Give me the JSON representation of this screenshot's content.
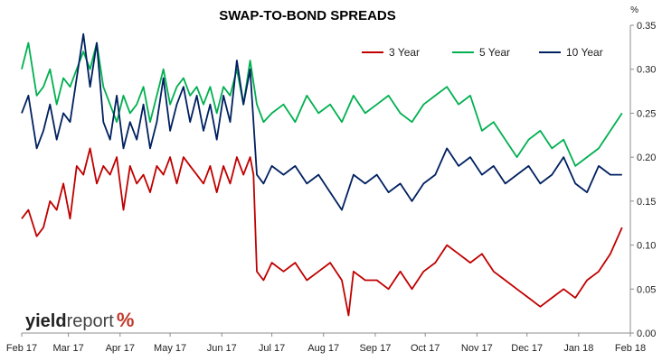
{
  "chart_data": {
    "type": "line",
    "title": "SWAP-TO-BOND SPREADS",
    "ylabel": "%",
    "ylim": [
      0,
      0.35
    ],
    "yticks": [
      "0.00",
      "0.05",
      "0.10",
      "0.15",
      "0.20",
      "0.25",
      "0.30",
      "0.35"
    ],
    "x_range": [
      "2017-02-01",
      "2018-02-01"
    ],
    "x_tick_labels": [
      "Feb 17",
      "Mar 17",
      "Apr 17",
      "May 17",
      "Jun 17",
      "Jul 17",
      "Aug 17",
      "Sep 17",
      "Oct 17",
      "Nov 17",
      "Dec 17",
      "Jan 18",
      "Feb 18"
    ],
    "x_tick_dates": [
      "2017-02-01",
      "2017-03-01",
      "2017-04-01",
      "2017-05-01",
      "2017-06-01",
      "2017-07-01",
      "2017-08-01",
      "2017-09-01",
      "2017-10-01",
      "2017-11-01",
      "2017-12-01",
      "2018-01-01",
      "2018-02-01"
    ],
    "grid": false,
    "legend_position": "top-right",
    "series": [
      {
        "name": "3 Year",
        "color": "#c00000",
        "dates": [
          "2017-02-01",
          "2017-02-05",
          "2017-02-10",
          "2017-02-14",
          "2017-02-18",
          "2017-02-22",
          "2017-02-26",
          "2017-03-02",
          "2017-03-06",
          "2017-03-10",
          "2017-03-14",
          "2017-03-18",
          "2017-03-22",
          "2017-03-26",
          "2017-03-30",
          "2017-04-03",
          "2017-04-07",
          "2017-04-11",
          "2017-04-15",
          "2017-04-19",
          "2017-04-23",
          "2017-04-27",
          "2017-05-01",
          "2017-05-05",
          "2017-05-09",
          "2017-05-13",
          "2017-05-17",
          "2017-05-21",
          "2017-05-25",
          "2017-05-29",
          "2017-06-02",
          "2017-06-06",
          "2017-06-10",
          "2017-06-14",
          "2017-06-18",
          "2017-06-20",
          "2017-06-22",
          "2017-06-26",
          "2017-07-01",
          "2017-07-08",
          "2017-07-15",
          "2017-07-22",
          "2017-07-29",
          "2017-08-05",
          "2017-08-12",
          "2017-08-16",
          "2017-08-19",
          "2017-08-26",
          "2017-09-02",
          "2017-09-09",
          "2017-09-16",
          "2017-09-23",
          "2017-09-30",
          "2017-10-07",
          "2017-10-14",
          "2017-10-21",
          "2017-10-28",
          "2017-11-04",
          "2017-11-11",
          "2017-11-18",
          "2017-11-25",
          "2017-12-02",
          "2017-12-09",
          "2017-12-16",
          "2017-12-23",
          "2017-12-30",
          "2018-01-06",
          "2018-01-13",
          "2018-01-20",
          "2018-01-27"
        ],
        "values": [
          0.13,
          0.14,
          0.11,
          0.12,
          0.15,
          0.14,
          0.17,
          0.13,
          0.19,
          0.18,
          0.21,
          0.17,
          0.19,
          0.18,
          0.2,
          0.14,
          0.19,
          0.17,
          0.18,
          0.16,
          0.19,
          0.18,
          0.2,
          0.17,
          0.2,
          0.19,
          0.18,
          0.17,
          0.19,
          0.16,
          0.19,
          0.17,
          0.2,
          0.18,
          0.2,
          0.18,
          0.07,
          0.06,
          0.08,
          0.07,
          0.08,
          0.06,
          0.07,
          0.08,
          0.06,
          0.02,
          0.07,
          0.06,
          0.06,
          0.05,
          0.07,
          0.05,
          0.07,
          0.08,
          0.1,
          0.09,
          0.08,
          0.09,
          0.07,
          0.06,
          0.05,
          0.04,
          0.03,
          0.04,
          0.05,
          0.04,
          0.06,
          0.07,
          0.09,
          0.12
        ]
      },
      {
        "name": "5 Year",
        "color": "#00b050",
        "dates": [
          "2017-02-01",
          "2017-02-05",
          "2017-02-10",
          "2017-02-14",
          "2017-02-18",
          "2017-02-22",
          "2017-02-26",
          "2017-03-02",
          "2017-03-06",
          "2017-03-10",
          "2017-03-14",
          "2017-03-18",
          "2017-03-22",
          "2017-03-26",
          "2017-03-30",
          "2017-04-03",
          "2017-04-07",
          "2017-04-11",
          "2017-04-15",
          "2017-04-19",
          "2017-04-23",
          "2017-04-27",
          "2017-05-01",
          "2017-05-05",
          "2017-05-09",
          "2017-05-13",
          "2017-05-17",
          "2017-05-21",
          "2017-05-25",
          "2017-05-29",
          "2017-06-02",
          "2017-06-06",
          "2017-06-10",
          "2017-06-14",
          "2017-06-18",
          "2017-06-22",
          "2017-06-26",
          "2017-07-01",
          "2017-07-08",
          "2017-07-15",
          "2017-07-22",
          "2017-07-29",
          "2017-08-05",
          "2017-08-12",
          "2017-08-19",
          "2017-08-26",
          "2017-09-02",
          "2017-09-09",
          "2017-09-16",
          "2017-09-23",
          "2017-09-30",
          "2017-10-07",
          "2017-10-14",
          "2017-10-21",
          "2017-10-28",
          "2017-11-04",
          "2017-11-11",
          "2017-11-18",
          "2017-11-25",
          "2017-12-02",
          "2017-12-09",
          "2017-12-16",
          "2017-12-23",
          "2017-12-30",
          "2018-01-06",
          "2018-01-13",
          "2018-01-20",
          "2018-01-27"
        ],
        "values": [
          0.3,
          0.33,
          0.27,
          0.28,
          0.3,
          0.26,
          0.29,
          0.28,
          0.3,
          0.32,
          0.3,
          0.33,
          0.28,
          0.26,
          0.24,
          0.27,
          0.25,
          0.26,
          0.28,
          0.24,
          0.27,
          0.3,
          0.26,
          0.28,
          0.29,
          0.27,
          0.28,
          0.26,
          0.28,
          0.25,
          0.28,
          0.27,
          0.3,
          0.26,
          0.31,
          0.26,
          0.24,
          0.25,
          0.26,
          0.24,
          0.27,
          0.25,
          0.26,
          0.24,
          0.27,
          0.25,
          0.26,
          0.27,
          0.25,
          0.24,
          0.26,
          0.27,
          0.28,
          0.26,
          0.27,
          0.23,
          0.24,
          0.22,
          0.2,
          0.22,
          0.23,
          0.21,
          0.22,
          0.19,
          0.2,
          0.21,
          0.23,
          0.25
        ]
      },
      {
        "name": "10 Year",
        "color": "#002060",
        "dates": [
          "2017-02-01",
          "2017-02-05",
          "2017-02-10",
          "2017-02-14",
          "2017-02-18",
          "2017-02-22",
          "2017-02-26",
          "2017-03-02",
          "2017-03-06",
          "2017-03-10",
          "2017-03-14",
          "2017-03-18",
          "2017-03-22",
          "2017-03-26",
          "2017-03-30",
          "2017-04-03",
          "2017-04-07",
          "2017-04-11",
          "2017-04-15",
          "2017-04-19",
          "2017-04-23",
          "2017-04-27",
          "2017-05-01",
          "2017-05-05",
          "2017-05-09",
          "2017-05-13",
          "2017-05-17",
          "2017-05-21",
          "2017-05-25",
          "2017-05-29",
          "2017-06-02",
          "2017-06-06",
          "2017-06-10",
          "2017-06-14",
          "2017-06-18",
          "2017-06-22",
          "2017-06-26",
          "2017-07-01",
          "2017-07-08",
          "2017-07-15",
          "2017-07-22",
          "2017-07-29",
          "2017-08-05",
          "2017-08-12",
          "2017-08-19",
          "2017-08-26",
          "2017-09-02",
          "2017-09-09",
          "2017-09-16",
          "2017-09-23",
          "2017-09-30",
          "2017-10-07",
          "2017-10-14",
          "2017-10-21",
          "2017-10-28",
          "2017-11-04",
          "2017-11-11",
          "2017-11-18",
          "2017-11-25",
          "2017-12-02",
          "2017-12-09",
          "2017-12-16",
          "2017-12-23",
          "2017-12-30",
          "2018-01-06",
          "2018-01-13",
          "2018-01-20",
          "2018-01-27"
        ],
        "values": [
          0.25,
          0.27,
          0.21,
          0.23,
          0.26,
          0.22,
          0.25,
          0.24,
          0.29,
          0.34,
          0.28,
          0.33,
          0.24,
          0.22,
          0.27,
          0.21,
          0.24,
          0.22,
          0.26,
          0.21,
          0.24,
          0.29,
          0.23,
          0.26,
          0.28,
          0.24,
          0.27,
          0.23,
          0.26,
          0.22,
          0.27,
          0.24,
          0.31,
          0.26,
          0.3,
          0.18,
          0.17,
          0.19,
          0.18,
          0.19,
          0.17,
          0.18,
          0.16,
          0.14,
          0.18,
          0.17,
          0.18,
          0.16,
          0.17,
          0.15,
          0.17,
          0.18,
          0.21,
          0.19,
          0.2,
          0.18,
          0.19,
          0.17,
          0.18,
          0.19,
          0.17,
          0.18,
          0.2,
          0.17,
          0.16,
          0.19,
          0.18,
          0.18
        ]
      }
    ]
  },
  "logo": {
    "part1": "yield",
    "part2": "report",
    "part3": "%"
  }
}
